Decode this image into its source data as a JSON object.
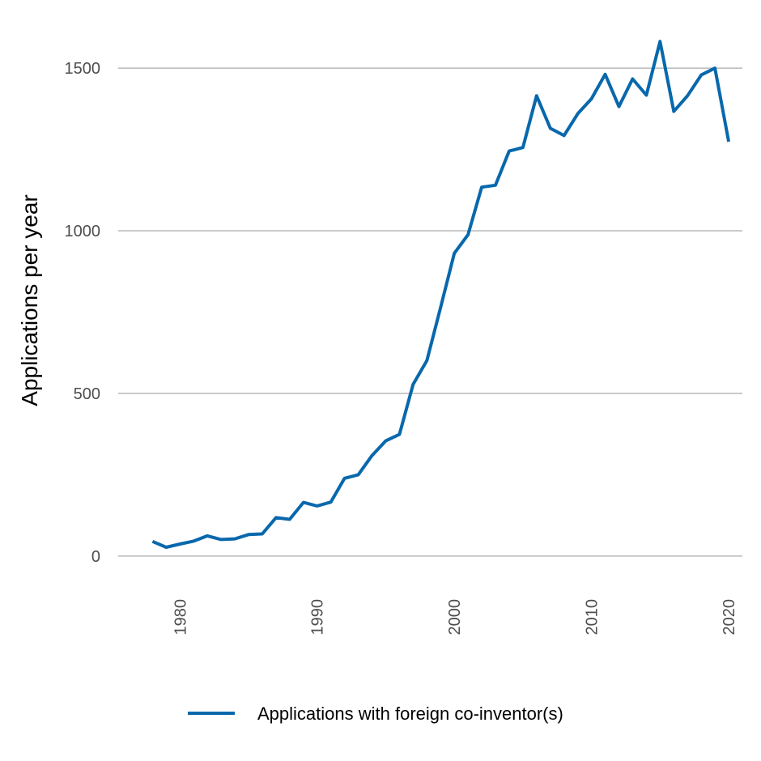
{
  "chart_data": {
    "type": "line",
    "title": "",
    "xlabel": "",
    "ylabel": "Applications per year",
    "xlim": [
      1975.5,
      2021
    ],
    "ylim": [
      -80,
      1610
    ],
    "y_ticks": [
      0,
      500,
      1000,
      1500
    ],
    "x_ticks": [
      1980,
      1990,
      2000,
      2010,
      2020
    ],
    "grid": "horizontal",
    "legend_position": "bottom",
    "series": [
      {
        "name": "Applications with foreign co-inventor(s)",
        "color": "#0868ac",
        "x": [
          1978,
          1979,
          1980,
          1981,
          1982,
          1983,
          1984,
          1985,
          1986,
          1987,
          1988,
          1989,
          1990,
          1991,
          1992,
          1993,
          1994,
          1995,
          1996,
          1997,
          1998,
          1999,
          2000,
          2001,
          2002,
          2003,
          2004,
          2005,
          2006,
          2007,
          2008,
          2009,
          2010,
          2011,
          2012,
          2013,
          2014,
          2015,
          2016,
          2017,
          2018,
          2019,
          2020
        ],
        "values": [
          45,
          27,
          37,
          46,
          62,
          51,
          53,
          66,
          68,
          118,
          113,
          165,
          154,
          166,
          239,
          250,
          309,
          354,
          374,
          528,
          601,
          764,
          931,
          988,
          1134,
          1140,
          1245,
          1256,
          1415,
          1315,
          1293,
          1360,
          1406,
          1481,
          1382,
          1467,
          1417,
          1582,
          1367,
          1415,
          1479,
          1500,
          1274
        ]
      }
    ]
  }
}
